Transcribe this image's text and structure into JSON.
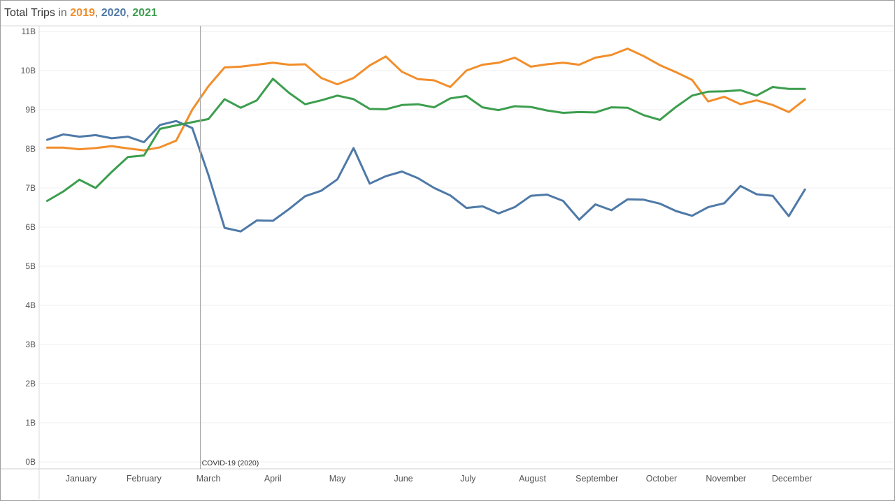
{
  "title": {
    "prefix": "Total Trips",
    "connector": "in",
    "years": [
      "2019",
      "2020",
      "2021"
    ],
    "sep1": ",",
    "sep2": ","
  },
  "colors": {
    "2019": "#f28e2b",
    "2020": "#4e79a7",
    "2021": "#3c9e4e",
    "title": "#333333",
    "grid": "#efefef",
    "axis_text": "#555555",
    "annotation_line": "#a8a8a8"
  },
  "chart_data": {
    "type": "line",
    "title": "Total Trips in 2019, 2020, 2021",
    "xlabel": "",
    "ylabel": "",
    "x_ticks": [
      "January",
      "February",
      "March",
      "April",
      "May",
      "June",
      "July",
      "August",
      "September",
      "October",
      "November",
      "December"
    ],
    "y_ticks": [
      "0B",
      "1B",
      "2B",
      "3B",
      "4B",
      "5B",
      "6B",
      "7B",
      "8B",
      "9B",
      "10B",
      "11B"
    ],
    "ylim": [
      0,
      11
    ],
    "xlim_weeks": [
      0.5,
      53.5
    ],
    "grid": true,
    "annotation": {
      "label": "COVID-19 (2020)",
      "x_week": 10.5
    },
    "weeks": [
      1,
      2,
      3,
      4,
      5,
      6,
      7,
      8,
      9,
      10,
      11,
      12,
      13,
      14,
      15,
      16,
      17,
      18,
      19,
      20,
      21,
      22,
      23,
      24,
      25,
      26,
      27,
      28,
      29,
      30,
      31,
      32,
      33,
      34,
      35,
      36,
      37,
      38,
      39,
      40,
      41,
      42,
      43,
      44,
      45,
      46,
      47,
      48,
      49,
      50,
      51,
      52
    ],
    "series": [
      {
        "name": "2019",
        "values": [
          8.03,
          8.03,
          7.99,
          8.02,
          8.07,
          8.01,
          7.96,
          8.04,
          8.21,
          9.0,
          9.6,
          10.08,
          10.1,
          10.15,
          10.2,
          10.15,
          10.16,
          9.81,
          9.65,
          9.81,
          10.13,
          10.36,
          9.97,
          9.78,
          9.75,
          9.58,
          10.0,
          10.15,
          10.2,
          10.33,
          10.1,
          10.16,
          10.2,
          10.15,
          10.33,
          10.4,
          10.56,
          10.37,
          10.14,
          9.96,
          9.76,
          9.21,
          9.33,
          9.14,
          9.24,
          9.12,
          8.94,
          9.26
        ]
      },
      {
        "name": "2020",
        "values": [
          8.23,
          8.37,
          8.31,
          8.35,
          8.27,
          8.31,
          8.17,
          8.61,
          8.71,
          8.53,
          7.33,
          5.98,
          5.89,
          6.17,
          6.16,
          6.46,
          6.79,
          6.93,
          7.22,
          8.02,
          7.11,
          7.3,
          7.42,
          7.25,
          7.0,
          6.81,
          6.49,
          6.53,
          6.35,
          6.51,
          6.8,
          6.83,
          6.67,
          6.19,
          6.58,
          6.43,
          6.71,
          6.7,
          6.6,
          6.41,
          6.29,
          6.51,
          6.61,
          7.05,
          6.84,
          6.8,
          6.28,
          6.96
        ]
      },
      {
        "name": "2021",
        "values": [
          6.67,
          6.91,
          7.21,
          7.0,
          7.41,
          7.79,
          7.83,
          8.51,
          8.6,
          8.68,
          8.76,
          9.27,
          9.05,
          9.24,
          9.79,
          9.43,
          9.14,
          9.24,
          9.36,
          9.27,
          9.02,
          9.01,
          9.12,
          9.14,
          9.06,
          9.29,
          9.35,
          9.06,
          8.99,
          9.09,
          9.07,
          8.98,
          8.92,
          8.94,
          8.93,
          9.06,
          9.05,
          8.86,
          8.74,
          9.07,
          9.36,
          9.46,
          9.47,
          9.5,
          9.36,
          9.58,
          9.53,
          9.53
        ]
      }
    ],
    "series_start_week": 1,
    "legend": "none"
  }
}
